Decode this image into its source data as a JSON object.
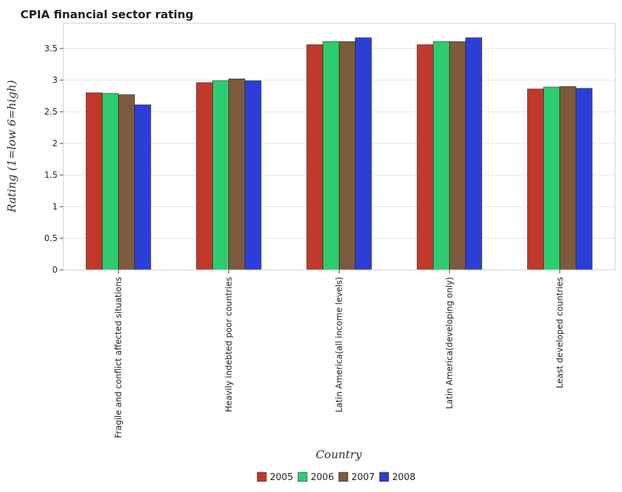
{
  "chart_data": {
    "type": "bar",
    "title": "CPIA financial sector rating",
    "xlabel": "Country",
    "ylabel": "Rating (1=low 6=high)",
    "ylim": [
      0,
      3.9
    ],
    "yticks": [
      "0",
      "0.5",
      "1",
      "1.5",
      "2",
      "2.5",
      "3",
      "3.5"
    ],
    "grid": true,
    "legend_position": "bottom-center",
    "categories": [
      "Fragile and conflict affected situations",
      "Heavily indebted poor countries",
      "Latin America(all income levels)",
      "Latin America(developing only)",
      "Least developed countries"
    ],
    "series": [
      {
        "name": "2005",
        "color": "#c0392b",
        "values": [
          2.8,
          2.96,
          3.56,
          3.56,
          2.86
        ]
      },
      {
        "name": "2006",
        "color": "#2ecc71",
        "values": [
          2.79,
          2.99,
          3.61,
          3.61,
          2.89
        ]
      },
      {
        "name": "2007",
        "color": "#7d5a3c",
        "values": [
          2.77,
          3.02,
          3.61,
          3.61,
          2.9
        ]
      },
      {
        "name": "2008",
        "color": "#2c3ed8",
        "values": [
          2.61,
          2.99,
          3.67,
          3.67,
          2.87
        ]
      }
    ]
  }
}
